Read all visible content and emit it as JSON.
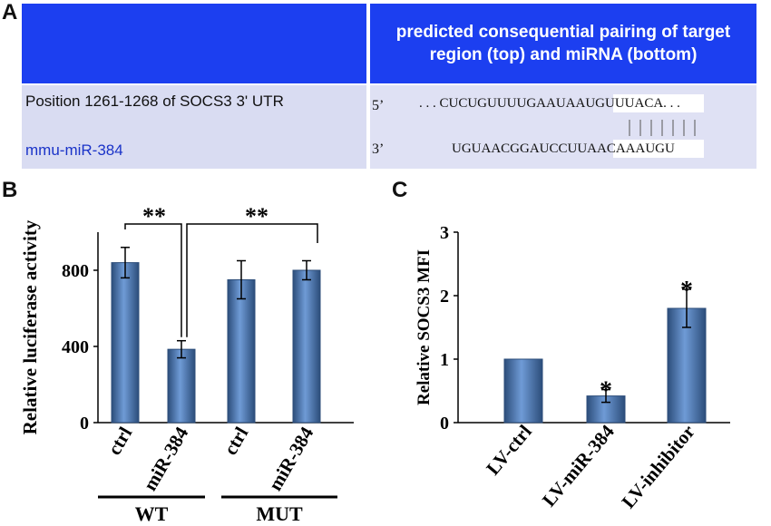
{
  "panel_a": {
    "letter": "A",
    "header_right": "predicted consequential pairing of target region (top) and miRNA (bottom)",
    "position_label": "Position 1261-1268 of SOCS3 3' UTR",
    "mirna_label": "mmu-miR-384",
    "end5": "5’",
    "end3": "3’",
    "seq_top": ". . . CUCUGUUUUGAAUAAUGUUUACA. . .",
    "seq_bottom": "UGUAACGGAUCCUUAACAAAUGU"
  },
  "colors": {
    "header_blue": "#1c3ff0",
    "row_bg": "#d9dcf2",
    "mirna_text": "#1a33c8",
    "bar_main": "#4f81bd",
    "bar_dark": "#2c4d7a"
  },
  "chart_data": [
    {
      "panel": "B",
      "type": "bar",
      "ylabel": "Relative luciferase activity",
      "categories": [
        "ctrl",
        "miR-384",
        "ctrl",
        "miR-384"
      ],
      "values": [
        840,
        385,
        750,
        800
      ],
      "errors": [
        80,
        45,
        100,
        50
      ],
      "ylim": [
        0,
        1000
      ],
      "yticks": [
        "0",
        "400",
        "800"
      ],
      "groups": [
        {
          "label": "WT",
          "members": [
            0,
            1
          ]
        },
        {
          "label": "MUT",
          "members": [
            2,
            3
          ]
        }
      ],
      "significance": [
        {
          "pair": [
            0,
            1
          ],
          "label": "**"
        },
        {
          "pair": [
            1,
            3
          ],
          "label": "**"
        }
      ]
    },
    {
      "panel": "C",
      "type": "bar",
      "ylabel": "Relative SOCS3 MFI",
      "categories": [
        "LV-ctrl",
        "LV-miR-384",
        "LV-inhibitor"
      ],
      "values": [
        1.0,
        0.42,
        1.8
      ],
      "errors": [
        0,
        0.1,
        0.3
      ],
      "ylim": [
        0,
        3
      ],
      "yticks": [
        "0",
        "1",
        "2",
        "3"
      ],
      "stars": [
        "",
        "*",
        "*"
      ]
    }
  ]
}
